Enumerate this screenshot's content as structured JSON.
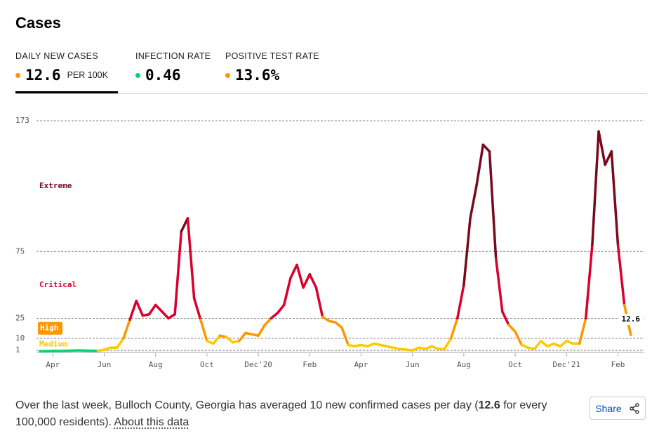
{
  "header": {
    "title": "Cases"
  },
  "metrics": [
    {
      "label": "DAILY NEW CASES",
      "value": "12.6",
      "unit": "PER 100K",
      "color": "#ff9600"
    },
    {
      "label": "INFECTION RATE",
      "value": "0.46",
      "color": "#00d474"
    },
    {
      "label": "POSITIVE TEST RATE",
      "value": "13.6%",
      "color": "#ff9600"
    }
  ],
  "chart_data": {
    "type": "line",
    "categories": [
      null,
      null,
      "Apr",
      null,
      null,
      null,
      null,
      null,
      null,
      null,
      "Jun",
      null,
      null,
      null,
      null,
      null,
      null,
      null,
      "Aug",
      null,
      null,
      null,
      null,
      null,
      null,
      null,
      "Oct",
      null,
      null,
      null,
      null,
      null,
      null,
      null,
      "Dec'20",
      null,
      null,
      null,
      null,
      null,
      null,
      null,
      "Feb",
      null,
      null,
      null,
      null,
      null,
      null,
      null,
      "Apr",
      null,
      null,
      null,
      null,
      null,
      null,
      null,
      "Jun",
      null,
      null,
      null,
      null,
      null,
      null,
      null,
      "Aug",
      null,
      null,
      null,
      null,
      null,
      null,
      null,
      "Oct",
      null,
      null,
      null,
      null,
      null,
      null,
      null,
      "Dec'21",
      null,
      null,
      null,
      null,
      null,
      null,
      null,
      "Feb",
      null,
      null
    ],
    "series": [
      {
        "values": [
          0.2,
          0.3,
          0.5,
          0.5,
          0.6,
          0.8,
          1,
          0.8,
          0.7,
          0.6,
          1.5,
          3,
          3,
          10,
          24,
          38,
          27,
          28,
          35,
          30,
          25,
          28,
          90,
          100,
          40,
          24,
          8,
          6,
          12,
          11,
          7,
          8,
          14,
          13,
          12,
          20,
          25,
          29,
          35,
          55,
          65,
          48,
          58,
          48,
          26,
          23,
          22,
          18,
          5,
          4,
          5,
          4,
          6,
          5,
          4,
          3,
          2,
          1.5,
          1,
          3,
          2,
          4,
          2,
          2,
          10,
          25,
          50,
          100,
          125,
          155,
          150,
          70,
          30,
          20,
          15,
          5,
          3,
          2,
          8,
          4,
          6,
          4,
          8,
          6,
          6,
          25,
          80,
          165,
          140,
          150,
          80,
          35,
          12.6
        ]
      }
    ],
    "ylim": [
      0,
      173
    ],
    "yticks": [
      1,
      10,
      25,
      75,
      173
    ],
    "grid": true,
    "zones": [
      {
        "min": 0,
        "color": "#00d474"
      },
      {
        "name": "Medium",
        "min": 1,
        "color": "#ffc900"
      },
      {
        "name": "High",
        "min": 10,
        "color": "#ff9600"
      },
      {
        "name": "Critical",
        "min": 25,
        "color": "#d9002c"
      },
      {
        "name": "Extreme",
        "min": 75,
        "color": "#79091e"
      }
    ]
  },
  "footer": {
    "before": "Over the last week, Bulloch County, Georgia has averaged 10 new confirmed cases per day (",
    "bold": "12.6",
    "after": " for every 100,000 residents). ",
    "link": "About this data"
  },
  "share": "Share"
}
